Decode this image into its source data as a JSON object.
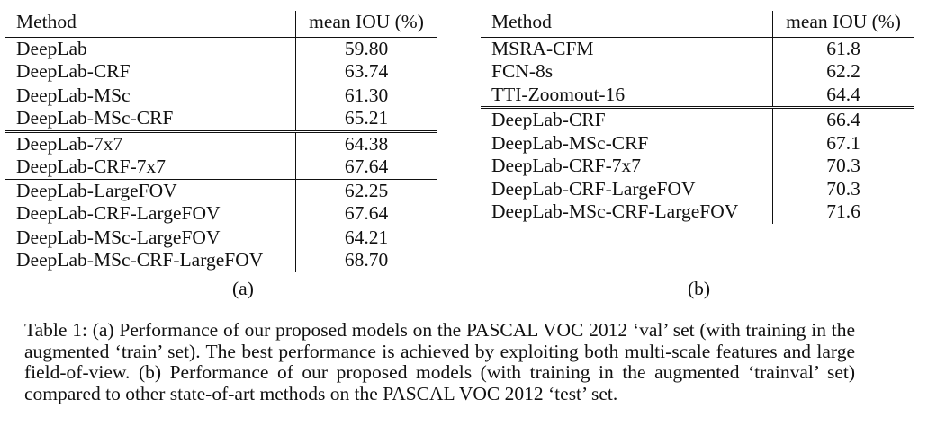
{
  "table_a": {
    "header": {
      "method": "Method",
      "score": "mean IOU (%)"
    },
    "groups": [
      [
        {
          "method": "DeepLab",
          "score": "59.80"
        },
        {
          "method": "DeepLab-CRF",
          "score": "63.74"
        }
      ],
      [
        {
          "method": "DeepLab-MSc",
          "score": "61.30"
        },
        {
          "method": "DeepLab-MSc-CRF",
          "score": "65.21"
        }
      ],
      [
        {
          "method": "DeepLab-7x7",
          "score": "64.38"
        },
        {
          "method": "DeepLab-CRF-7x7",
          "score": "67.64"
        }
      ],
      [
        {
          "method": "DeepLab-LargeFOV",
          "score": "62.25"
        },
        {
          "method": "DeepLab-CRF-LargeFOV",
          "score": "67.64"
        }
      ],
      [
        {
          "method": "DeepLab-MSc-LargeFOV",
          "score": "64.21"
        },
        {
          "method": "DeepLab-MSc-CRF-LargeFOV",
          "score": "68.70"
        }
      ]
    ],
    "label": "(a)"
  },
  "table_b": {
    "header": {
      "method": "Method",
      "score": "mean IOU (%)"
    },
    "groups": [
      [
        {
          "method": "MSRA-CFM",
          "score": "61.8"
        },
        {
          "method": "FCN-8s",
          "score": "62.2"
        },
        {
          "method": "TTI-Zoomout-16",
          "score": "64.4"
        }
      ],
      [
        {
          "method": "DeepLab-CRF",
          "score": "66.4"
        },
        {
          "method": "DeepLab-MSc-CRF",
          "score": "67.1"
        },
        {
          "method": "DeepLab-CRF-7x7",
          "score": "70.3"
        },
        {
          "method": "DeepLab-CRF-LargeFOV",
          "score": "70.3"
        },
        {
          "method": "DeepLab-MSc-CRF-LargeFOV",
          "score": "71.6"
        }
      ]
    ],
    "label": "(b)"
  },
  "caption": "Table 1: (a) Performance of our proposed models on the PASCAL VOC 2012 ‘val’ set (with training in the augmented ‘train’ set). The best performance is achieved by exploiting both multi-scale features and large field-of-view. (b) Performance of our proposed models (with training in the augmented ‘trainval’ set) compared to other state-of-art methods on the PASCAL VOC 2012 ‘test’ set."
}
